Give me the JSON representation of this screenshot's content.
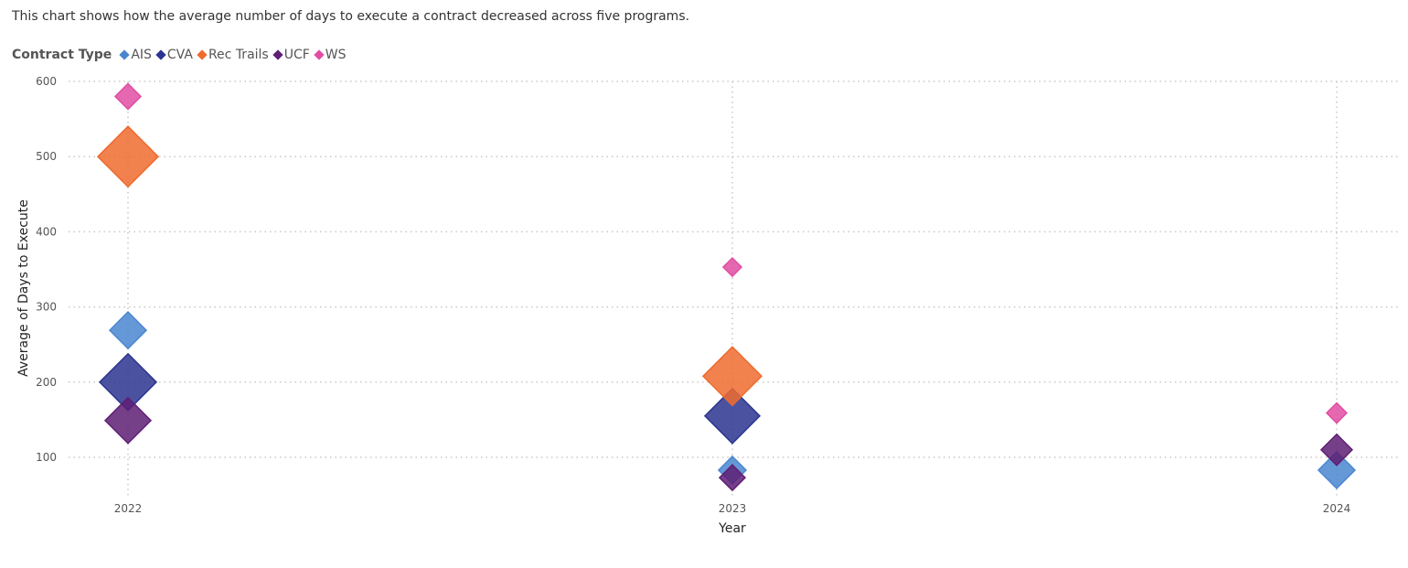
{
  "description": "This chart shows how the average number of days to execute a contract decreased across five programs.",
  "chart_data": {
    "type": "scatter",
    "xlabel": "Year",
    "ylabel": "Average of Days to Execute",
    "x_categories": [
      "2022",
      "2023",
      "2024"
    ],
    "yticks": [
      100,
      200,
      300,
      400,
      500,
      600
    ],
    "ylim": [
      50,
      600
    ],
    "grid": true,
    "legend": {
      "title": "Contract Type",
      "placement": "top-left"
    },
    "marker": "diamond",
    "series": [
      {
        "name": "AIS",
        "color": "#4a86d0",
        "points": [
          {
            "x": "2022",
            "y": 269,
            "size": 20
          },
          {
            "x": "2023",
            "y": 83,
            "size": 15
          },
          {
            "x": "2024",
            "y": 83,
            "size": 20
          }
        ]
      },
      {
        "name": "CVA",
        "color": "#2b3590",
        "points": [
          {
            "x": "2022",
            "y": 200,
            "size": 31
          },
          {
            "x": "2023",
            "y": 155,
            "size": 30
          }
        ]
      },
      {
        "name": "Rec Trails",
        "color": "#ee6b2e",
        "points": [
          {
            "x": "2022",
            "y": 500,
            "size": 33
          },
          {
            "x": "2023",
            "y": 208,
            "size": 32
          }
        ]
      },
      {
        "name": "UCF",
        "color": "#5e1f74",
        "points": [
          {
            "x": "2022",
            "y": 149,
            "size": 25
          },
          {
            "x": "2023",
            "y": 73,
            "size": 14
          },
          {
            "x": "2024",
            "y": 110,
            "size": 17
          }
        ]
      },
      {
        "name": "WS",
        "color": "#e04ea3",
        "points": [
          {
            "x": "2022",
            "y": 580,
            "size": 14
          },
          {
            "x": "2023",
            "y": 353,
            "size": 10
          },
          {
            "x": "2024",
            "y": 159,
            "size": 11
          }
        ]
      }
    ]
  }
}
